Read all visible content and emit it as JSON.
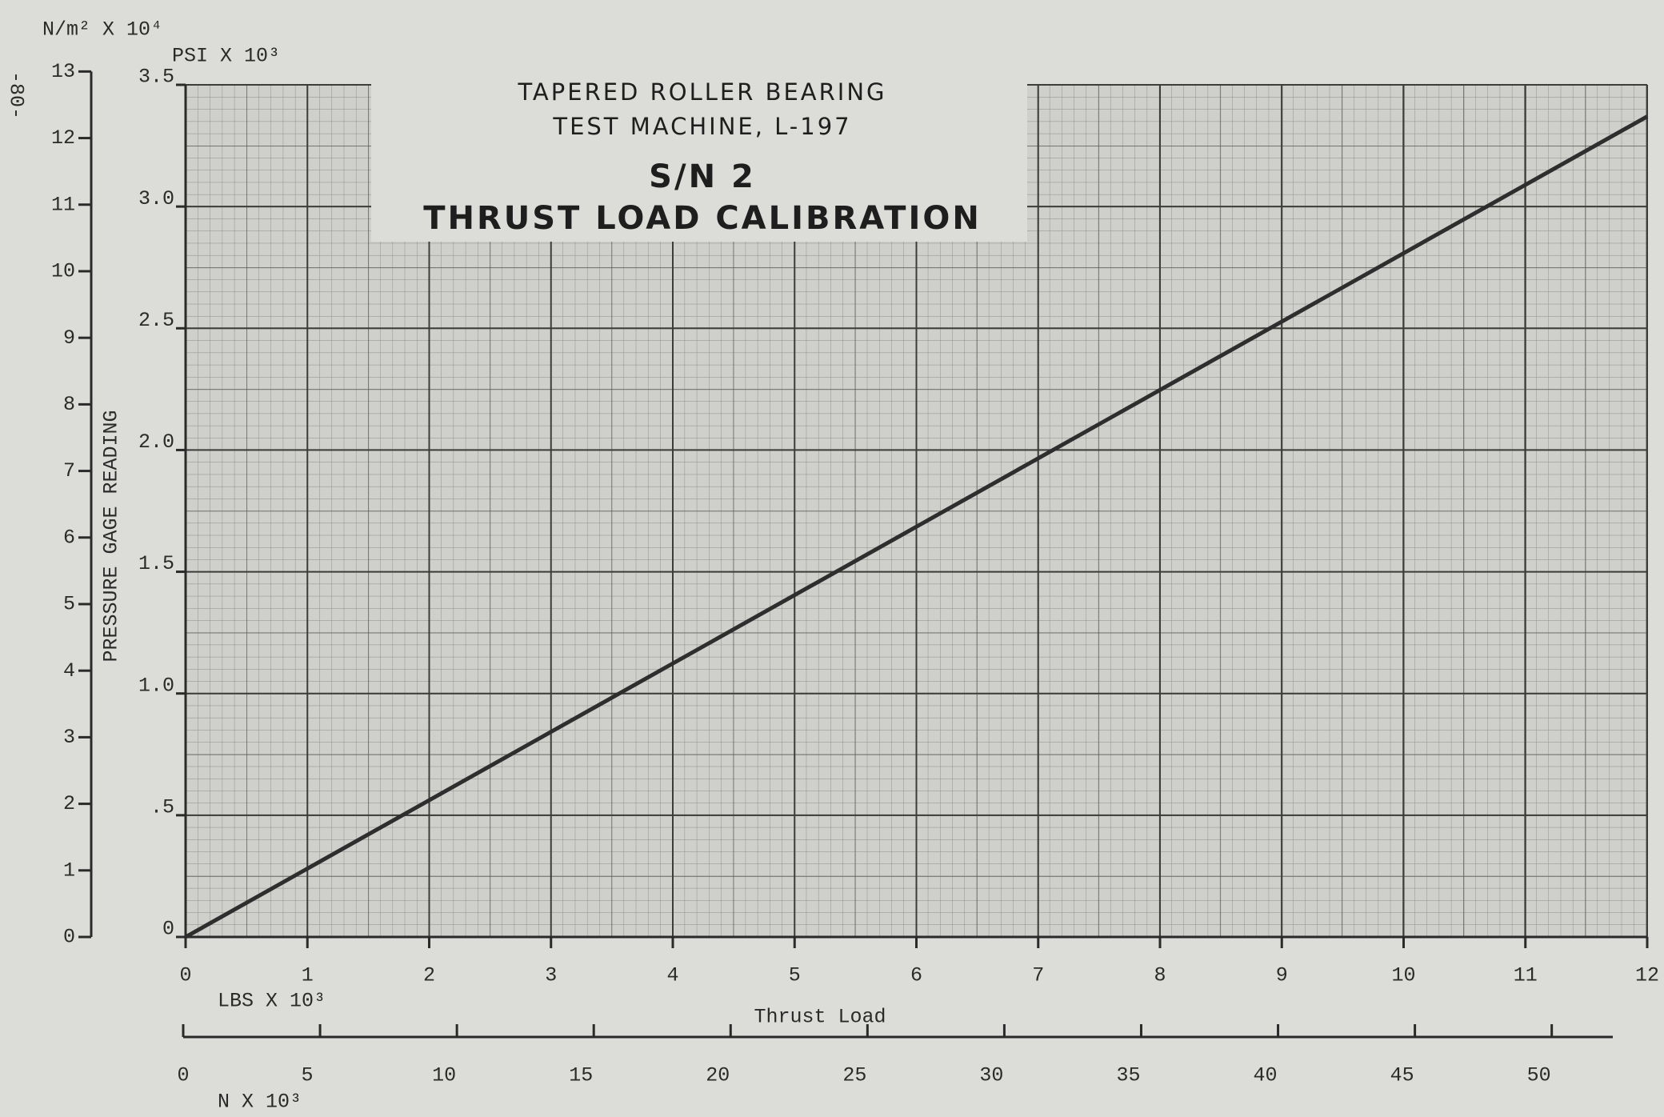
{
  "chart_data": {
    "type": "line",
    "title": [
      "TAPERED ROLLER BEARING",
      "TEST MACHINE, L-197",
      "S/N 2",
      "THRUST LOAD CALIBRATION"
    ],
    "page_number": "-80-",
    "ylabel": "PRESSURE GAGE READING",
    "yunit": "PSI X 10³",
    "y2unit": "N/m² X 10⁴",
    "xlabel": "Thrust Load",
    "xunit": "LBS X 10³",
    "x2unit": "N X 10³",
    "x": [
      0,
      12
    ],
    "series": [
      {
        "color": "#2e2e2e",
        "values": [
          0,
          3.37
        ]
      }
    ],
    "xlim": [
      0,
      12
    ],
    "xticks": [
      0,
      1,
      2,
      3,
      4,
      5,
      6,
      7,
      8,
      9,
      10,
      11,
      12
    ],
    "x2lim": [
      0,
      53.4
    ],
    "x2ticks": [
      0,
      5,
      10,
      15,
      20,
      25,
      30,
      35,
      40,
      45,
      50
    ],
    "ylim": [
      0,
      3.5
    ],
    "yticks": [
      0,
      {
        "value": 0.5,
        "label": ".5"
      },
      {
        "value": 1,
        "label": "1.0"
      },
      {
        "value": 1.5,
        "label": "1.5"
      },
      {
        "value": 2,
        "label": "2.0"
      },
      {
        "value": 2.5,
        "label": "2.5"
      },
      {
        "value": 3,
        "label": "3.0"
      },
      {
        "value": 3.5,
        "label": "3.5"
      }
    ],
    "y2lim": [
      0,
      12.8
    ],
    "y2ticks": [
      0,
      1,
      2,
      3,
      4,
      5,
      6,
      7,
      8,
      9,
      10,
      11,
      12,
      13
    ],
    "grid": true
  }
}
